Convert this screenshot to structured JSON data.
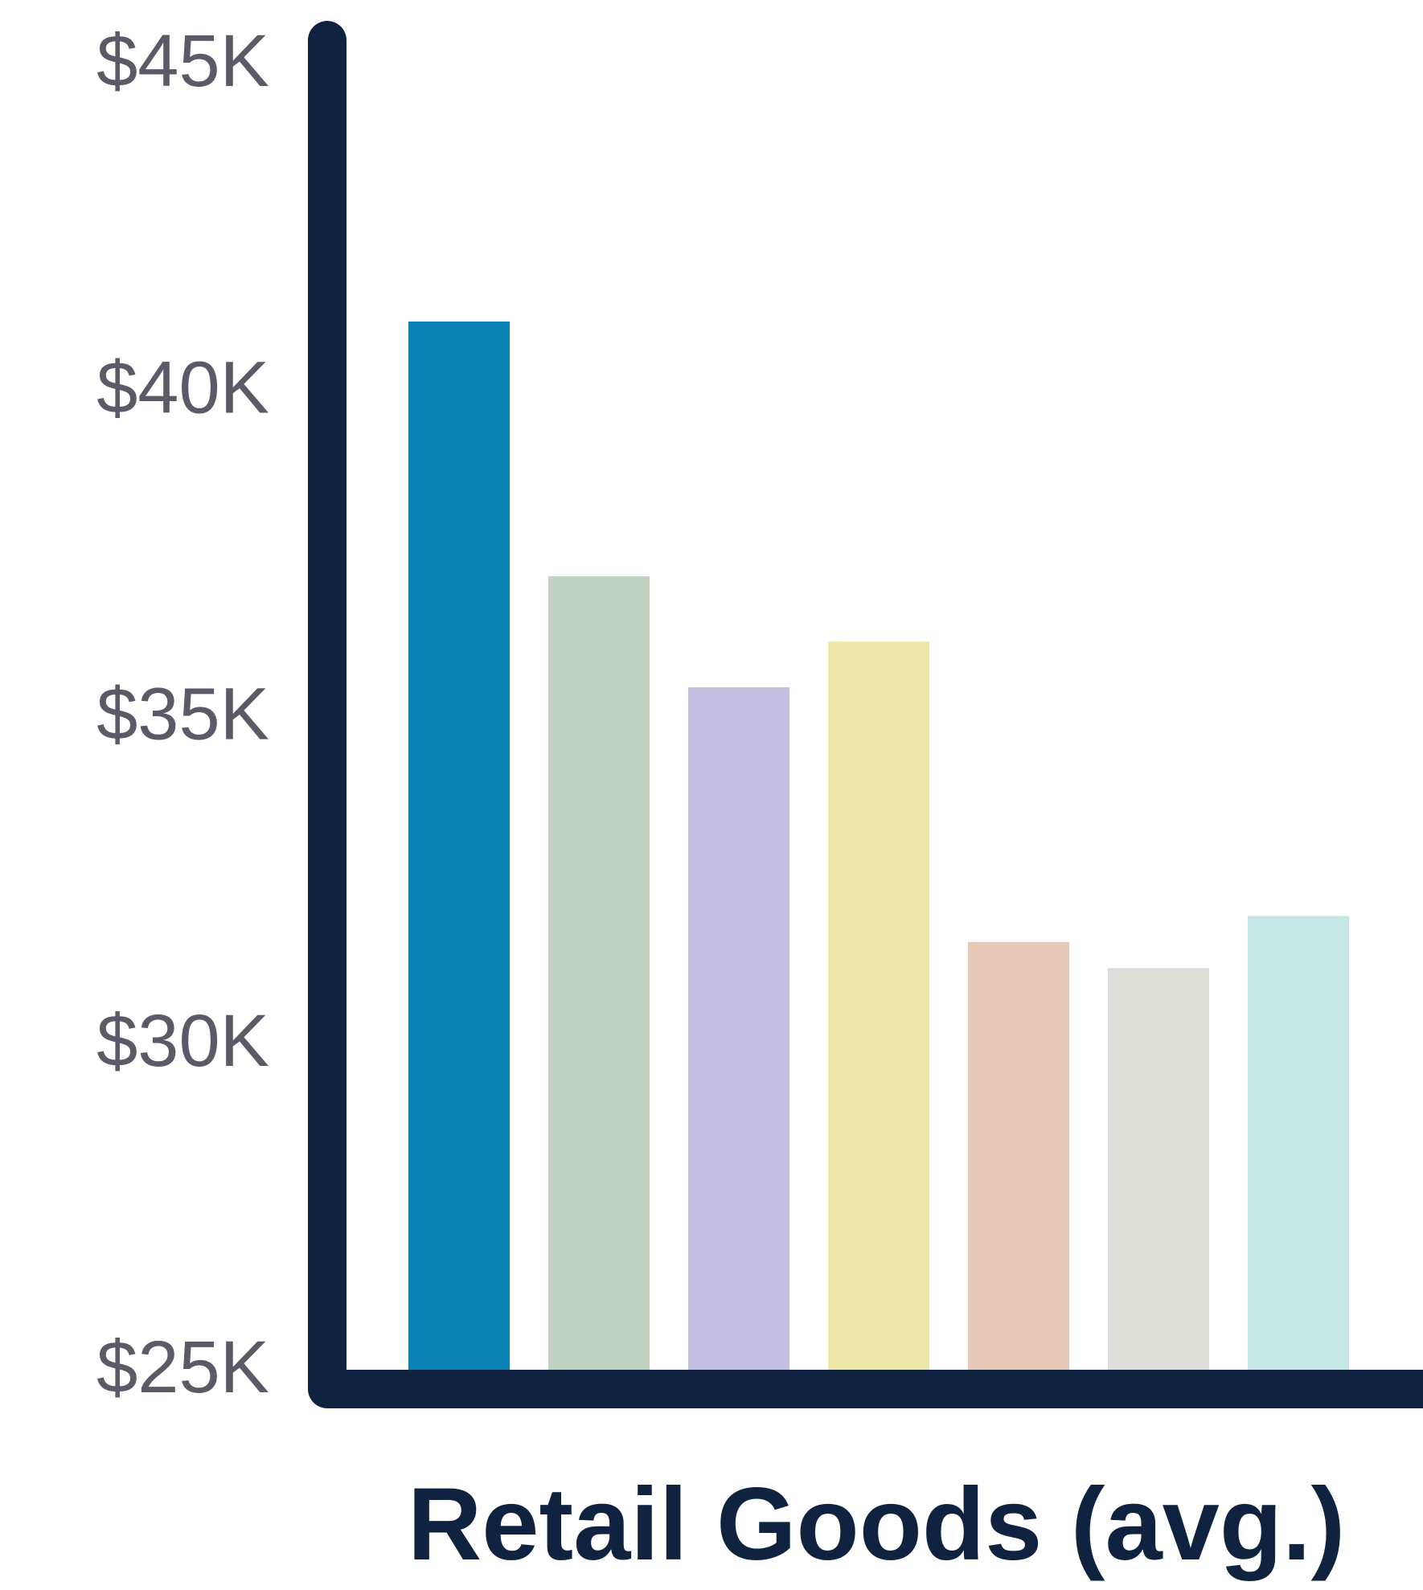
{
  "chart_data": {
    "type": "bar",
    "title": "",
    "xlabel": "Retail Goods (avg.)",
    "ylabel": "",
    "ylim": [
      25000,
      45000
    ],
    "y_ticks": [
      {
        "value": 45000,
        "label": "$45K"
      },
      {
        "value": 40000,
        "label": "$40K"
      },
      {
        "value": 35000,
        "label": "$35K"
      },
      {
        "value": 30000,
        "label": "$30K"
      },
      {
        "value": 25000,
        "label": "$25K"
      }
    ],
    "values": [
      41000,
      37100,
      35400,
      36100,
      31500,
      31100,
      31900
    ],
    "colors": [
      "#0a82b4",
      "#c2d2c0",
      "#c3c0e2",
      "#ede7a9",
      "#e6c8b6",
      "#dedcd6",
      "#c5e8e4"
    ],
    "axis_color": "#0f2340",
    "grid": false,
    "legend": "none"
  }
}
